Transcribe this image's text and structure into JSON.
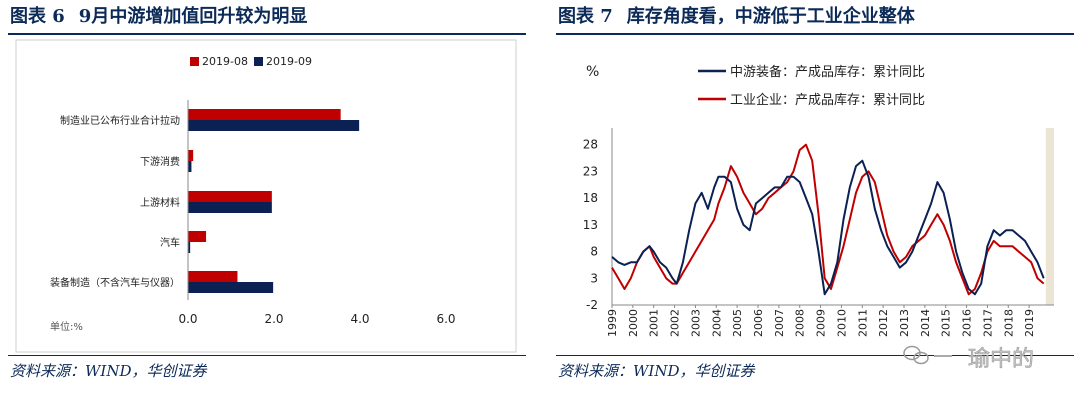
{
  "left": {
    "title_label": "图表 6",
    "title_text": "9月中游增加值回升较为明显",
    "source": "资料来源：WIND，华创证券",
    "unit_label": "单位:%"
  },
  "right": {
    "title_label": "图表 7",
    "title_text": "库存角度看，中游低于工业企业整体",
    "source": "资料来源：WIND，华创证券",
    "unit_label": "%"
  },
  "watermark": {
    "text": "瑜中的"
  },
  "colors": {
    "red": "#c00000",
    "navy": "#0b2153",
    "title": "#0b2a57",
    "shade": "#ece5d6"
  },
  "chart_data": [
    {
      "type": "bar",
      "orientation": "horizontal",
      "categories": [
        "制造业已公布行业合计拉动",
        "下游消费",
        "上游材料",
        "汽车",
        "装备制造（不含汽车与仪器）"
      ],
      "series": [
        {
          "name": "2019-08",
          "values": [
            3.55,
            0.12,
            1.95,
            0.42,
            1.15
          ]
        },
        {
          "name": "2019-09",
          "values": [
            3.98,
            0.08,
            1.95,
            0.05,
            1.98
          ]
        }
      ],
      "xlim": [
        0,
        6
      ],
      "x_ticks": [
        "0.0",
        "2.0",
        "4.0",
        "6.0"
      ],
      "legend_position": "top",
      "grid": false
    },
    {
      "type": "line",
      "x_tick_labels": [
        "1999",
        "2000",
        "2001",
        "2002",
        "2003",
        "2004",
        "2005",
        "2006",
        "2007",
        "2008",
        "2009",
        "2010",
        "2011",
        "2012",
        "2013",
        "2014",
        "2015",
        "2016",
        "2017",
        "2018",
        "2019"
      ],
      "y_ticks": [
        -2,
        3,
        8,
        13,
        18,
        23,
        28
      ],
      "ylim": [
        -2,
        30
      ],
      "xlim": [
        1999,
        2020
      ],
      "grid": false,
      "legend_position": "top",
      "shaded_region": [
        2019.8,
        2020.0
      ],
      "series": [
        {
          "name": "中游装备：产成品库存：累计同比",
          "x": [
            1999.0,
            1999.3,
            1999.6,
            1999.9,
            2000.2,
            2000.5,
            2000.8,
            2001.0,
            2001.3,
            2001.6,
            2001.9,
            2002.1,
            2002.4,
            2002.7,
            2003.0,
            2003.3,
            2003.6,
            2003.9,
            2004.1,
            2004.4,
            2004.7,
            2005.0,
            2005.3,
            2005.6,
            2005.9,
            2006.2,
            2006.5,
            2006.8,
            2007.1,
            2007.4,
            2007.7,
            2008.0,
            2008.3,
            2008.6,
            2008.9,
            2009.2,
            2009.5,
            2009.8,
            2010.1,
            2010.4,
            2010.7,
            2011.0,
            2011.3,
            2011.6,
            2011.9,
            2012.2,
            2012.5,
            2012.8,
            2013.1,
            2013.4,
            2013.7,
            2014.0,
            2014.3,
            2014.6,
            2014.9,
            2015.2,
            2015.5,
            2015.8,
            2016.1,
            2016.4,
            2016.7,
            2017.0,
            2017.3,
            2017.6,
            2017.9,
            2018.2,
            2018.5,
            2018.8,
            2019.1,
            2019.4,
            2019.7
          ],
          "values": [
            7,
            6,
            5.5,
            6,
            6,
            8,
            9,
            8,
            6,
            5,
            3,
            2,
            6,
            12,
            17,
            19,
            16,
            20,
            22,
            22,
            21,
            16,
            13,
            12,
            17,
            18,
            19,
            20,
            20,
            22,
            22,
            21,
            18,
            15,
            8,
            0,
            2,
            6,
            14,
            20,
            24,
            25,
            22,
            16,
            12,
            9,
            7,
            5,
            6,
            8,
            11,
            14,
            17,
            21,
            19,
            14,
            8,
            4,
            1,
            0,
            2,
            9,
            12,
            11,
            12,
            12,
            11,
            10,
            8,
            6,
            3
          ]
        },
        {
          "name": "工业企业：产成品库存：累计同比",
          "x": [
            1999.0,
            1999.3,
            1999.6,
            1999.9,
            2000.2,
            2000.5,
            2000.8,
            2001.0,
            2001.3,
            2001.6,
            2001.9,
            2002.1,
            2002.4,
            2002.7,
            2003.0,
            2003.3,
            2003.6,
            2003.9,
            2004.1,
            2004.4,
            2004.7,
            2005.0,
            2005.3,
            2005.6,
            2005.9,
            2006.2,
            2006.5,
            2006.8,
            2007.1,
            2007.4,
            2007.7,
            2008.0,
            2008.3,
            2008.6,
            2008.9,
            2009.2,
            2009.5,
            2009.8,
            2010.1,
            2010.4,
            2010.7,
            2011.0,
            2011.3,
            2011.6,
            2011.9,
            2012.2,
            2012.5,
            2012.8,
            2013.1,
            2013.4,
            2013.7,
            2014.0,
            2014.3,
            2014.6,
            2014.9,
            2015.2,
            2015.5,
            2015.8,
            2016.1,
            2016.4,
            2016.7,
            2017.0,
            2017.3,
            2017.6,
            2017.9,
            2018.2,
            2018.5,
            2018.8,
            2019.1,
            2019.4,
            2019.7
          ],
          "values": [
            5,
            3,
            1,
            3,
            6,
            8,
            9,
            7,
            5,
            3,
            2,
            2,
            4,
            6,
            8,
            10,
            12,
            14,
            17,
            20,
            24,
            22,
            19,
            17,
            15,
            16,
            18,
            19,
            20,
            21,
            23,
            27,
            28,
            25,
            15,
            3,
            1,
            5,
            9,
            14,
            19,
            22,
            23,
            21,
            16,
            11,
            8,
            6,
            7,
            9,
            10,
            11,
            13,
            15,
            13,
            10,
            6,
            3,
            0,
            1,
            4,
            8,
            10,
            9,
            9,
            9,
            8,
            7,
            6,
            3,
            2
          ]
        }
      ]
    }
  ]
}
